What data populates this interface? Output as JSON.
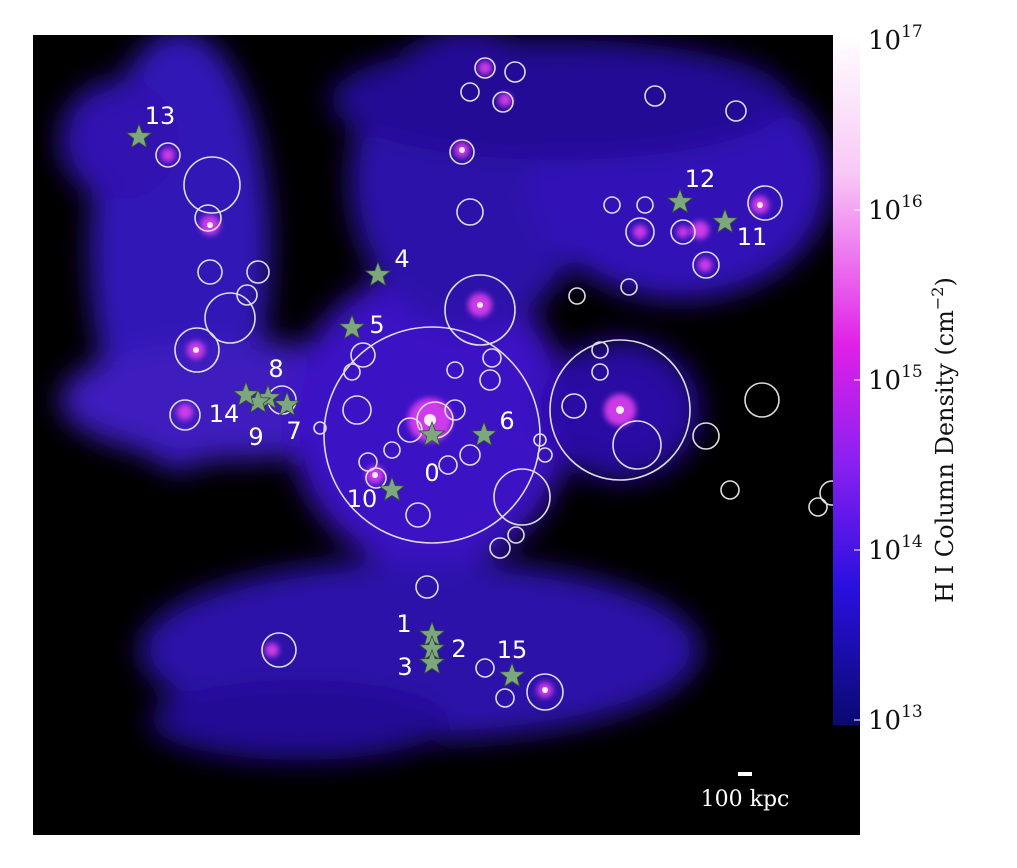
{
  "colorbar": {
    "label": {
      "text": "H I Column Density (cm",
      "exponent": "−2",
      "close": ")"
    },
    "ticks": [
      {
        "base": "10",
        "exponent": "17"
      },
      {
        "base": "10",
        "exponent": "16"
      },
      {
        "base": "10",
        "exponent": "15"
      },
      {
        "base": "10",
        "exponent": "14"
      },
      {
        "base": "10",
        "exponent": "13"
      }
    ]
  },
  "stars": [
    {
      "label": "0"
    },
    {
      "label": "1"
    },
    {
      "label": "2"
    },
    {
      "label": "3"
    },
    {
      "label": "4"
    },
    {
      "label": "5"
    },
    {
      "label": "6"
    },
    {
      "label": "7"
    },
    {
      "label": "8"
    },
    {
      "label": "9"
    },
    {
      "label": "10"
    },
    {
      "label": "11"
    },
    {
      "label": "12"
    },
    {
      "label": "13"
    },
    {
      "label": "14"
    },
    {
      "label": "15"
    }
  ],
  "scale_bar": {
    "label": "100 kpc"
  }
}
